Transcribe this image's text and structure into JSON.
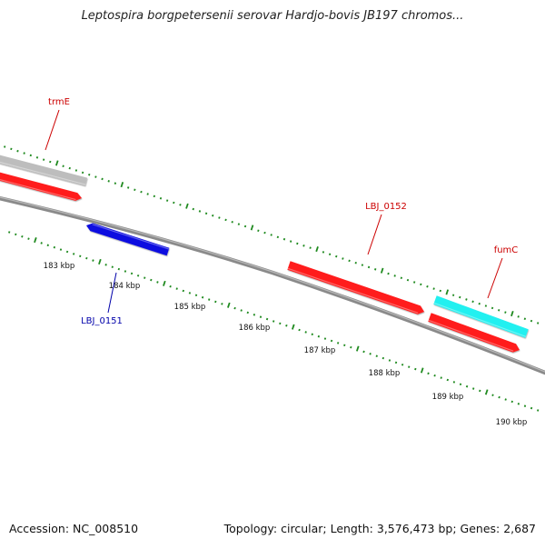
{
  "title": "Leptospira borgpetersenii serovar Hardjo-bovis JB197 chromos...",
  "footer": {
    "accession": "Accession: NC_008510",
    "summary": "Topology: circular; Length: 3,576,473 bp; Genes: 2,687"
  },
  "colors": {
    "backbone": "#8a8a8a",
    "cds": "#ff1a1a",
    "gene_gray": "#bdbdbd",
    "gene_cyan": "#22f0f0",
    "forward_label": "#cc0000",
    "reverse_gene": "#1010e0",
    "reverse_label": "#0000aa",
    "ticks": "#1f8a1f"
  },
  "scale": {
    "unit": "kbp",
    "labels": [
      "183 kbp",
      "184 kbp",
      "185 kbp",
      "186 kbp",
      "187 kbp",
      "188 kbp",
      "189 kbp",
      "190 kbp"
    ]
  },
  "features": {
    "forward": [
      {
        "name": "trmE",
        "strand": "+",
        "color_key": "gene_gray",
        "has_cds": true
      },
      {
        "name": "LBJ_0152",
        "strand": "+",
        "color_key": "cds",
        "has_cds": false
      },
      {
        "name": "fumC",
        "strand": "+",
        "color_key": "gene_cyan",
        "has_cds": true
      }
    ],
    "reverse": [
      {
        "name": "LBJ_0151",
        "strand": "-",
        "color_key": "reverse_gene"
      }
    ]
  }
}
